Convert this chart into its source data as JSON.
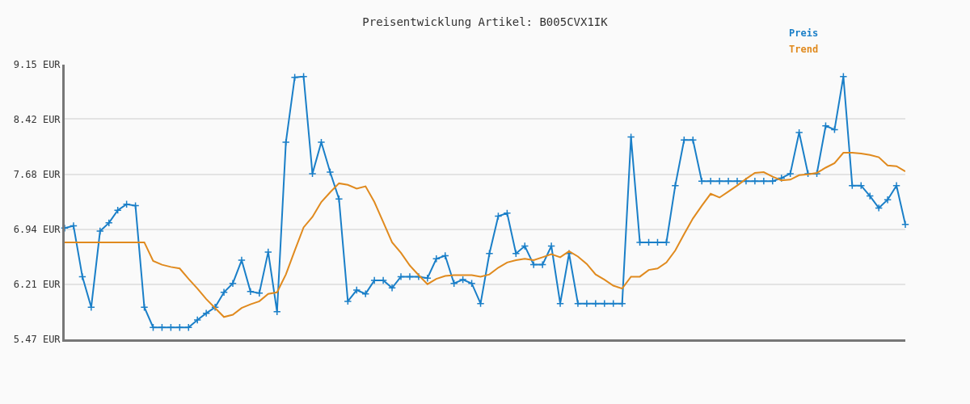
{
  "chart_data": {
    "type": "line",
    "title": "Preisentwicklung Artikel: B005CVX1IK",
    "categories": [
      null,
      null,
      null,
      null,
      null,
      null,
      null,
      null,
      null,
      null,
      null,
      null,
      null,
      null,
      null,
      null,
      null,
      null,
      null,
      null,
      null,
      null,
      null,
      null,
      null,
      null,
      null,
      null,
      null,
      null,
      null,
      null,
      null,
      null,
      null,
      null,
      null,
      null,
      null,
      null,
      null,
      null,
      null,
      null,
      null,
      null,
      null,
      null,
      null,
      null,
      null,
      null,
      null,
      null,
      null,
      null,
      null,
      null,
      null,
      null,
      null,
      null,
      null,
      null,
      null,
      null,
      null,
      null,
      null,
      null,
      null,
      null,
      null,
      null,
      null,
      null,
      null,
      null,
      null,
      null,
      null,
      null,
      null,
      null,
      null,
      null,
      null,
      null,
      null,
      null,
      null,
      null,
      null,
      null,
      null,
      null
    ],
    "series": [
      {
        "name": "Preis",
        "color": "#1a7fc8",
        "marker": "cross",
        "values": [
          6.96,
          6.99,
          6.31,
          5.9,
          6.92,
          7.03,
          7.2,
          7.28,
          7.26,
          5.9,
          5.63,
          5.63,
          5.63,
          5.63,
          5.63,
          5.73,
          5.82,
          5.9,
          6.1,
          6.22,
          6.53,
          6.11,
          6.09,
          6.64,
          5.84,
          8.11,
          8.98,
          8.99,
          7.69,
          8.11,
          7.71,
          7.35,
          5.98,
          6.13,
          6.08,
          6.26,
          6.26,
          6.16,
          6.31,
          6.31,
          6.31,
          6.29,
          6.55,
          6.59,
          6.22,
          6.27,
          6.22,
          5.95,
          6.62,
          7.12,
          7.16,
          6.62,
          6.72,
          6.47,
          6.47,
          6.72,
          5.95,
          6.62,
          5.95,
          5.95,
          5.95,
          5.95,
          5.95,
          5.95,
          8.18,
          6.77,
          6.77,
          6.77,
          6.77,
          7.53,
          8.14,
          8.14,
          7.59,
          7.59,
          7.59,
          7.59,
          7.59,
          7.59,
          7.59,
          7.59,
          7.59,
          7.63,
          7.69,
          8.24,
          7.69,
          7.69,
          8.33,
          8.28,
          8.99,
          7.53,
          7.53,
          7.39,
          7.23,
          7.34,
          7.53,
          7.01
        ]
      },
      {
        "name": "Trend",
        "color": "#e08a1e",
        "marker": "none",
        "values": [
          6.77,
          6.77,
          6.77,
          6.77,
          6.77,
          6.77,
          6.77,
          6.77,
          6.77,
          6.77,
          6.52,
          6.47,
          6.44,
          6.42,
          6.28,
          6.15,
          6.01,
          5.89,
          5.77,
          5.8,
          5.89,
          5.94,
          5.98,
          6.08,
          6.1,
          6.34,
          6.66,
          6.97,
          7.11,
          7.31,
          7.44,
          7.56,
          7.54,
          7.49,
          7.52,
          7.31,
          7.04,
          6.77,
          6.63,
          6.46,
          6.33,
          6.21,
          6.28,
          6.32,
          6.33,
          6.33,
          6.33,
          6.31,
          6.34,
          6.43,
          6.5,
          6.53,
          6.55,
          6.53,
          6.57,
          6.61,
          6.57,
          6.65,
          6.58,
          6.48,
          6.34,
          6.27,
          6.19,
          6.15,
          6.31,
          6.31,
          6.4,
          6.42,
          6.5,
          6.66,
          6.88,
          7.09,
          7.26,
          7.42,
          7.37,
          7.45,
          7.53,
          7.62,
          7.7,
          7.71,
          7.65,
          7.6,
          7.61,
          7.67,
          7.68,
          7.7,
          7.77,
          7.83,
          7.97,
          7.97,
          7.96,
          7.94,
          7.91,
          7.8,
          7.79,
          7.72
        ]
      }
    ],
    "ylim": [
      5.47,
      9.15
    ],
    "yticks": [
      {
        "value": 5.47,
        "label": "5.47 EUR"
      },
      {
        "value": 6.21,
        "label": "6.21 EUR"
      },
      {
        "value": 6.94,
        "label": "6.94 EUR"
      },
      {
        "value": 7.68,
        "label": "7.68 EUR"
      },
      {
        "value": 8.42,
        "label": "8.42 EUR"
      },
      {
        "value": 9.15,
        "label": "9.15 EUR"
      }
    ],
    "grid": "y",
    "legend": "top right",
    "tick_labels": "y",
    "line_style": "solid"
  }
}
